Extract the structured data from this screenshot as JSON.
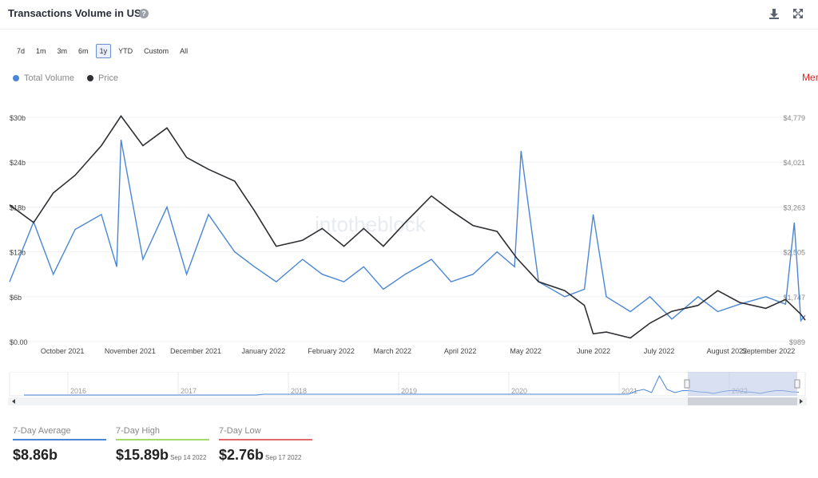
{
  "header": {
    "title": "Transactions Volume in USD",
    "help_icon": "question-circle-icon",
    "download_icon": "download-icon",
    "fullscreen_icon": "fullscreen-icon"
  },
  "range_buttons": [
    "7d",
    "1m",
    "3m",
    "6m",
    "1y",
    "YTD",
    "Custom",
    "All"
  ],
  "active_range": "1y",
  "colors": {
    "volume": "#4a86d4",
    "price": "#2d2f33",
    "merge": "#e02020",
    "high": "#a4d96c",
    "low": "#e06b6b"
  },
  "watermark": "intotheblock",
  "chart_data": {
    "type": "line",
    "title": "Transactions Volume in USD",
    "legend_placement": "top-left",
    "grid": true,
    "x_ticks": [
      "October 2021",
      "November 2021",
      "December 2021",
      "January 2022",
      "February 2022",
      "March 2022",
      "April 2022",
      "May 2022",
      "June 2022",
      "July 2022",
      "August 2022",
      "September 2022"
    ],
    "y_left_ticks": [
      "$0.00",
      "$6b",
      "$12b",
      "$18b",
      "$24b",
      "$30b"
    ],
    "y_left_range": [
      0,
      30
    ],
    "y_right_ticks": [
      "$989",
      "$1,747",
      "$2,505",
      "$3,263",
      "$4,021",
      "$4,779"
    ],
    "y_right_range": [
      989,
      4779
    ],
    "annotation": {
      "label": "Merge",
      "date": "2022-09-15"
    },
    "series": [
      {
        "name": "Total Volume",
        "axis": "left",
        "unit": "$b",
        "x": [
          "2021-09-20",
          "2021-10-01",
          "2021-10-10",
          "2021-10-20",
          "2021-11-01",
          "2021-11-08",
          "2021-11-10",
          "2021-11-20",
          "2021-12-01",
          "2021-12-10",
          "2021-12-20",
          "2022-01-01",
          "2022-01-10",
          "2022-01-20",
          "2022-02-01",
          "2022-02-10",
          "2022-02-20",
          "2022-03-01",
          "2022-03-10",
          "2022-03-20",
          "2022-04-01",
          "2022-04-10",
          "2022-04-20",
          "2022-05-01",
          "2022-05-09",
          "2022-05-12",
          "2022-05-20",
          "2022-06-01",
          "2022-06-10",
          "2022-06-14",
          "2022-06-20",
          "2022-07-01",
          "2022-07-10",
          "2022-07-20",
          "2022-08-01",
          "2022-08-10",
          "2022-08-20",
          "2022-09-01",
          "2022-09-10",
          "2022-09-14",
          "2022-09-17",
          "2022-09-19"
        ],
        "values": [
          8,
          16,
          9,
          15,
          17,
          10,
          27,
          11,
          18,
          9,
          17,
          12,
          10,
          8,
          11,
          9,
          8,
          10,
          7,
          9,
          11,
          8,
          9,
          12,
          10,
          25.5,
          8,
          6,
          7,
          17,
          6,
          4,
          6,
          3,
          6,
          4,
          5,
          6,
          5,
          15.9,
          2.8,
          3.5
        ]
      },
      {
        "name": "Price",
        "axis": "right",
        "unit": "$",
        "x": [
          "2021-09-20",
          "2021-10-01",
          "2021-10-10",
          "2021-10-20",
          "2021-11-01",
          "2021-11-10",
          "2021-11-20",
          "2021-12-01",
          "2021-12-10",
          "2021-12-20",
          "2022-01-01",
          "2022-01-10",
          "2022-01-20",
          "2022-02-01",
          "2022-02-10",
          "2022-02-20",
          "2022-03-01",
          "2022-03-10",
          "2022-03-20",
          "2022-04-01",
          "2022-04-10",
          "2022-04-20",
          "2022-05-01",
          "2022-05-10",
          "2022-05-20",
          "2022-06-01",
          "2022-06-10",
          "2022-06-14",
          "2022-06-20",
          "2022-07-01",
          "2022-07-10",
          "2022-07-20",
          "2022-08-01",
          "2022-08-10",
          "2022-08-20",
          "2022-09-01",
          "2022-09-10",
          "2022-09-17",
          "2022-09-19"
        ],
        "values": [
          3300,
          3000,
          3500,
          3800,
          4300,
          4800,
          4300,
          4600,
          4100,
          3900,
          3700,
          3200,
          2600,
          2700,
          2900,
          2600,
          2900,
          2600,
          3000,
          3450,
          3200,
          2950,
          2850,
          2400,
          2000,
          1850,
          1600,
          1120,
          1150,
          1050,
          1300,
          1500,
          1600,
          1850,
          1650,
          1550,
          1700,
          1450,
          1350
        ]
      }
    ]
  },
  "navigator": {
    "years": [
      "2016",
      "2017",
      "2018",
      "2019",
      "2020",
      "2021",
      "2022"
    ]
  },
  "stats": [
    {
      "label": "7-Day Average",
      "value": "$8.86b",
      "date": "",
      "color": "#4a86d4"
    },
    {
      "label": "7-Day High",
      "value": "$15.89b",
      "date": "Sep 14 2022",
      "color": "#a4d96c"
    },
    {
      "label": "7-Day Low",
      "value": "$2.76b",
      "date": "Sep 17 2022",
      "color": "#e06b6b"
    }
  ]
}
